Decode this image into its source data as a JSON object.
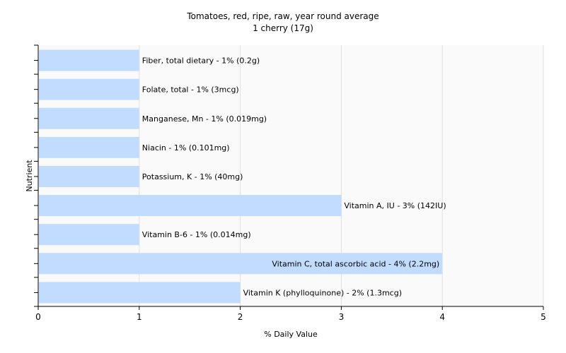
{
  "chart_data": {
    "type": "bar",
    "orientation": "horizontal",
    "title": "Tomatoes, red, ripe, raw, year round average",
    "subtitle": "1 cherry (17g)",
    "xlabel": "% Daily Value",
    "ylabel": "Nutrient",
    "xlim": [
      0,
      5
    ],
    "xticks": [
      "0",
      "1",
      "2",
      "3",
      "4",
      "5"
    ],
    "grid": true,
    "colors": {
      "bar": "#c2dcff",
      "grid": "#e0e0e0",
      "plot_bg": "#fafafa",
      "axis": "#000000"
    },
    "categories": [
      "Fiber, total dietary",
      "Folate, total",
      "Manganese, Mn",
      "Niacin",
      "Potassium, K",
      "Vitamin A, IU",
      "Vitamin B-6",
      "Vitamin C, total ascorbic acid",
      "Vitamin K (phylloquinone)"
    ],
    "values": [
      1,
      1,
      1,
      1,
      1,
      3,
      1,
      4,
      2
    ],
    "labels": [
      "Fiber, total dietary - 1% (0.2g)",
      "Folate, total - 1% (3mcg)",
      "Manganese, Mn - 1% (0.019mg)",
      "Niacin - 1% (0.101mg)",
      "Potassium, K - 1% (40mg)",
      "Vitamin A, IU - 3% (142IU)",
      "Vitamin B-6 - 1% (0.014mg)",
      "Vitamin C, total ascorbic acid - 4% (2.2mg)",
      "Vitamin K (phylloquinone) - 2% (1.3mcg)"
    ]
  }
}
